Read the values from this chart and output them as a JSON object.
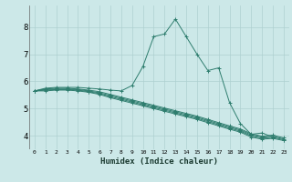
{
  "xlabel": "Humidex (Indice chaleur)",
  "x_values": [
    0,
    1,
    2,
    3,
    4,
    5,
    6,
    7,
    8,
    9,
    10,
    11,
    12,
    13,
    14,
    15,
    16,
    17,
    18,
    19,
    20,
    21,
    22,
    23
  ],
  "lines": [
    [
      5.65,
      5.75,
      5.78,
      5.78,
      5.78,
      5.75,
      5.72,
      5.68,
      5.65,
      5.85,
      6.55,
      7.65,
      7.75,
      8.3,
      7.65,
      7.0,
      6.4,
      6.5,
      5.22,
      4.45,
      4.05,
      4.1,
      3.95,
      null
    ],
    [
      5.65,
      5.72,
      5.75,
      5.75,
      5.72,
      5.68,
      5.62,
      5.52,
      5.42,
      5.32,
      5.22,
      5.12,
      5.02,
      4.92,
      4.82,
      4.72,
      4.6,
      4.48,
      4.36,
      4.25,
      4.07,
      3.98,
      4.02,
      3.92
    ],
    [
      5.65,
      5.7,
      5.72,
      5.72,
      5.7,
      5.65,
      5.58,
      5.48,
      5.38,
      5.28,
      5.18,
      5.08,
      4.98,
      4.88,
      4.78,
      4.68,
      4.56,
      4.44,
      4.32,
      4.21,
      4.03,
      3.95,
      3.98,
      3.88
    ],
    [
      5.65,
      5.68,
      5.7,
      5.7,
      5.68,
      5.62,
      5.55,
      5.44,
      5.34,
      5.24,
      5.14,
      5.04,
      4.94,
      4.84,
      4.74,
      4.64,
      4.52,
      4.4,
      4.28,
      4.17,
      3.99,
      3.91,
      3.94,
      3.85
    ],
    [
      5.65,
      5.65,
      5.68,
      5.68,
      5.65,
      5.6,
      5.52,
      5.4,
      5.3,
      5.2,
      5.1,
      5.0,
      4.9,
      4.8,
      4.7,
      4.6,
      4.48,
      4.36,
      4.24,
      4.13,
      3.95,
      3.87,
      3.9,
      3.82
    ]
  ],
  "line_color": "#2e7d6e",
  "bg_color": "#cce8e8",
  "grid_color": "#aed0d0",
  "ylim": [
    3.5,
    8.8
  ],
  "yticks": [
    4,
    5,
    6,
    7,
    8
  ],
  "xlim": [
    -0.5,
    23.5
  ]
}
